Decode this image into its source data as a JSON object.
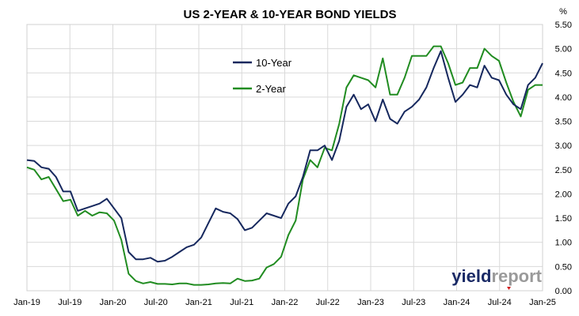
{
  "chart_data": {
    "type": "line",
    "title": "US 2-YEAR & 10-YEAR BOND YIELDS",
    "unit_label": "%",
    "xlabel": "",
    "ylabel": "",
    "ylim": [
      0,
      5.5
    ],
    "y_ticks": [
      "0.00",
      "0.50",
      "1.00",
      "1.50",
      "2.00",
      "2.50",
      "3.00",
      "3.50",
      "4.00",
      "4.50",
      "5.00",
      "5.50"
    ],
    "x_ticks": [
      "Jan-19",
      "Jul-19",
      "Jan-20",
      "Jul-20",
      "Jan-21",
      "Jul-21",
      "Jan-22",
      "Jul-22",
      "Jan-23",
      "Jul-23",
      "Jan-24",
      "Jul-24",
      "Jan-25"
    ],
    "grid": true,
    "legend_position": "top-center",
    "x": [
      "Jan-19",
      "Feb-19",
      "Mar-19",
      "Apr-19",
      "May-19",
      "Jun-19",
      "Jul-19",
      "Aug-19",
      "Sep-19",
      "Oct-19",
      "Nov-19",
      "Dec-19",
      "Jan-20",
      "Feb-20",
      "Mar-20",
      "Apr-20",
      "May-20",
      "Jun-20",
      "Jul-20",
      "Aug-20",
      "Sep-20",
      "Oct-20",
      "Nov-20",
      "Dec-20",
      "Jan-21",
      "Feb-21",
      "Mar-21",
      "Apr-21",
      "May-21",
      "Jun-21",
      "Jul-21",
      "Aug-21",
      "Sep-21",
      "Oct-21",
      "Nov-21",
      "Dec-21",
      "Jan-22",
      "Feb-22",
      "Mar-22",
      "Apr-22",
      "May-22",
      "Jun-22",
      "Jul-22",
      "Aug-22",
      "Sep-22",
      "Oct-22",
      "Nov-22",
      "Dec-22",
      "Jan-23",
      "Feb-23",
      "Mar-23",
      "Apr-23",
      "May-23",
      "Jun-23",
      "Jul-23",
      "Aug-23",
      "Sep-23",
      "Oct-23",
      "Nov-23",
      "Dec-23",
      "Jan-24",
      "Feb-24",
      "Mar-24",
      "Apr-24",
      "May-24",
      "Jun-24",
      "Jul-24",
      "Aug-24",
      "Sep-24",
      "Oct-24",
      "Nov-24",
      "Dec-24"
    ],
    "series": [
      {
        "name": "10-Year",
        "color": "#16285e",
        "values": [
          2.7,
          2.68,
          2.55,
          2.52,
          2.35,
          2.05,
          2.05,
          1.65,
          1.7,
          1.75,
          1.8,
          1.9,
          1.7,
          1.5,
          0.8,
          0.65,
          0.65,
          0.68,
          0.6,
          0.62,
          0.7,
          0.8,
          0.9,
          0.95,
          1.1,
          1.4,
          1.7,
          1.63,
          1.6,
          1.48,
          1.25,
          1.3,
          1.45,
          1.6,
          1.55,
          1.5,
          1.8,
          1.95,
          2.35,
          2.9,
          2.9,
          3.0,
          2.7,
          3.1,
          3.8,
          4.05,
          3.75,
          3.85,
          3.5,
          3.95,
          3.55,
          3.45,
          3.7,
          3.8,
          3.95,
          4.2,
          4.6,
          4.95,
          4.4,
          3.9,
          4.05,
          4.25,
          4.2,
          4.65,
          4.4,
          4.35,
          4.05,
          3.85,
          3.75,
          4.25,
          4.4,
          4.7
        ]
      },
      {
        "name": "2-Year",
        "color": "#218c21",
        "values": [
          2.55,
          2.5,
          2.3,
          2.35,
          2.1,
          1.85,
          1.88,
          1.55,
          1.65,
          1.55,
          1.62,
          1.6,
          1.45,
          1.05,
          0.35,
          0.2,
          0.15,
          0.18,
          0.14,
          0.14,
          0.13,
          0.15,
          0.15,
          0.12,
          0.12,
          0.13,
          0.15,
          0.16,
          0.15,
          0.25,
          0.2,
          0.21,
          0.25,
          0.48,
          0.55,
          0.7,
          1.15,
          1.45,
          2.3,
          2.7,
          2.55,
          2.95,
          2.9,
          3.45,
          4.2,
          4.45,
          4.4,
          4.35,
          4.2,
          4.8,
          4.05,
          4.05,
          4.4,
          4.85,
          4.85,
          4.85,
          5.05,
          5.05,
          4.7,
          4.25,
          4.3,
          4.6,
          4.6,
          5.0,
          4.85,
          4.75,
          4.3,
          3.9,
          3.6,
          4.15,
          4.25,
          4.25
        ]
      }
    ]
  },
  "brand": {
    "part1": "yield",
    "part2": "report"
  }
}
